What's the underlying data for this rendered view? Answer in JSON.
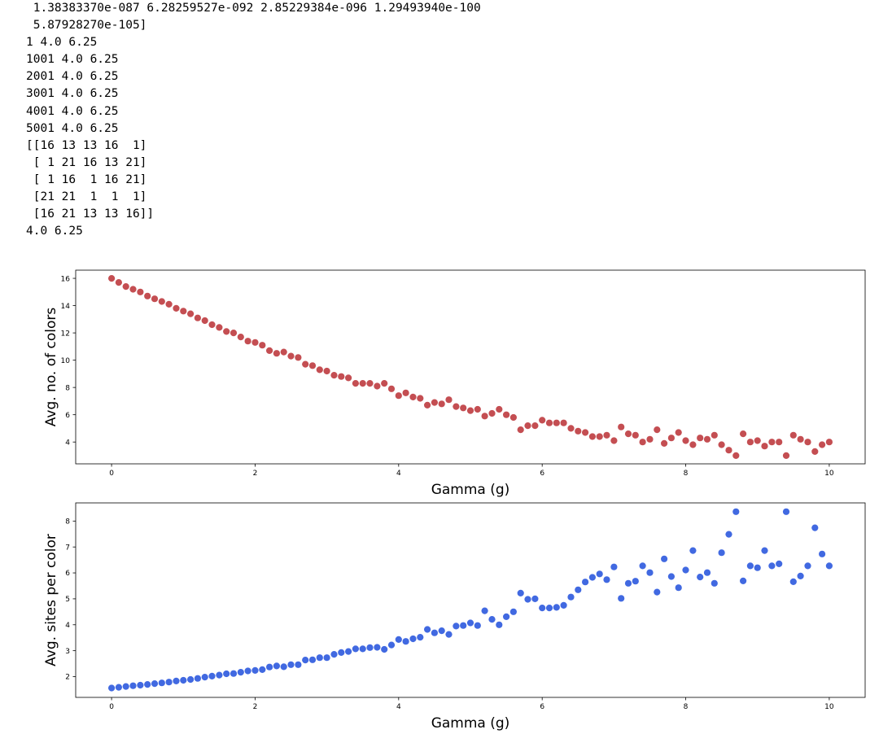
{
  "output": {
    "lines": [
      " 1.38383370e-087 6.28259527e-092 2.85229384e-096 1.29493940e-100",
      " 5.87928270e-105]",
      "1 4.0 6.25",
      "1001 4.0 6.25",
      "2001 4.0 6.25",
      "3001 4.0 6.25",
      "4001 4.0 6.25",
      "5001 4.0 6.25",
      "[[16 13 13 16  1]",
      " [ 1 21 16 13 21]",
      " [ 1 16  1 16 21]",
      " [21 21  1  1  1]",
      " [16 21 13 13 16]]",
      "4.0 6.25"
    ]
  },
  "chart_data": [
    {
      "type": "scatter",
      "color": "#c44e52",
      "xlabel": "Gamma (g)",
      "ylabel": "Avg. no. of colors",
      "xlim": [
        -0.5,
        10.5
      ],
      "ylim": [
        2.4,
        16.6
      ],
      "xticks": [
        0,
        2,
        4,
        6,
        8,
        10
      ],
      "yticks": [
        4,
        6,
        8,
        10,
        12,
        14,
        16
      ],
      "grid": false,
      "x": [
        0.0,
        0.1,
        0.2,
        0.3,
        0.4,
        0.5,
        0.6,
        0.7,
        0.8,
        0.9,
        1.0,
        1.1,
        1.2,
        1.3,
        1.4,
        1.5,
        1.6,
        1.7,
        1.8,
        1.9,
        2.0,
        2.1,
        2.2,
        2.3,
        2.4,
        2.5,
        2.6,
        2.7,
        2.8,
        2.9,
        3.0,
        3.1,
        3.2,
        3.3,
        3.4,
        3.5,
        3.6,
        3.7,
        3.8,
        3.9,
        4.0,
        4.1,
        4.2,
        4.3,
        4.4,
        4.5,
        4.6,
        4.7,
        4.8,
        4.9,
        5.0,
        5.1,
        5.2,
        5.3,
        5.4,
        5.5,
        5.6,
        5.7,
        5.8,
        5.9,
        6.0,
        6.1,
        6.2,
        6.3,
        6.4,
        6.5,
        6.6,
        6.7,
        6.8,
        6.9,
        7.0,
        7.1,
        7.2,
        7.3,
        7.4,
        7.5,
        7.6,
        7.7,
        7.8,
        7.9,
        8.0,
        8.1,
        8.2,
        8.3,
        8.4,
        8.5,
        8.6,
        8.7,
        8.8,
        8.9,
        9.0,
        9.1,
        9.2,
        9.3,
        9.4,
        9.5,
        9.6,
        9.7,
        9.8,
        9.9,
        10.0
      ],
      "y": [
        16.0,
        15.7,
        15.4,
        15.2,
        15.0,
        14.7,
        14.5,
        14.3,
        14.1,
        13.8,
        13.6,
        13.4,
        13.1,
        12.9,
        12.6,
        12.4,
        12.1,
        12.0,
        11.7,
        11.4,
        11.3,
        11.1,
        10.7,
        10.5,
        10.6,
        10.3,
        10.2,
        9.7,
        9.6,
        9.3,
        9.2,
        8.9,
        8.8,
        8.7,
        8.3,
        8.3,
        8.3,
        8.1,
        8.3,
        7.9,
        7.4,
        7.6,
        7.3,
        7.2,
        6.7,
        6.9,
        6.8,
        7.1,
        6.6,
        6.5,
        6.3,
        6.4,
        5.9,
        6.1,
        6.4,
        6.0,
        5.8,
        4.9,
        5.2,
        5.2,
        5.6,
        5.4,
        5.4,
        5.4,
        5.0,
        4.8,
        4.7,
        4.4,
        4.4,
        4.5,
        4.1,
        5.1,
        4.6,
        4.5,
        4.0,
        4.2,
        4.9,
        3.9,
        4.3,
        4.7,
        4.1,
        3.8,
        4.3,
        4.2,
        4.5,
        3.8,
        3.4,
        3.0,
        4.6,
        4.0,
        4.1,
        3.7,
        4.0,
        4.0,
        3.0,
        4.5,
        4.2,
        4.0,
        3.3,
        3.8,
        4.0
      ]
    },
    {
      "type": "scatter",
      "color": "#4169e1",
      "xlabel": "Gamma (g)",
      "ylabel": "Avg. sites per color",
      "xlim": [
        -0.5,
        10.5
      ],
      "ylim": [
        1.2,
        8.7
      ],
      "xticks": [
        0,
        2,
        4,
        6,
        8,
        10
      ],
      "yticks": [
        2,
        3,
        4,
        5,
        6,
        7,
        8
      ],
      "grid": false,
      "x": [
        0.0,
        0.1,
        0.2,
        0.3,
        0.4,
        0.5,
        0.6,
        0.7,
        0.8,
        0.9,
        1.0,
        1.1,
        1.2,
        1.3,
        1.4,
        1.5,
        1.6,
        1.7,
        1.8,
        1.9,
        2.0,
        2.1,
        2.2,
        2.3,
        2.4,
        2.5,
        2.6,
        2.7,
        2.8,
        2.9,
        3.0,
        3.1,
        3.2,
        3.3,
        3.4,
        3.5,
        3.6,
        3.7,
        3.8,
        3.9,
        4.0,
        4.1,
        4.2,
        4.3,
        4.4,
        4.5,
        4.6,
        4.7,
        4.8,
        4.9,
        5.0,
        5.1,
        5.2,
        5.3,
        5.4,
        5.5,
        5.6,
        5.7,
        5.8,
        5.9,
        6.0,
        6.1,
        6.2,
        6.3,
        6.4,
        6.5,
        6.6,
        6.7,
        6.8,
        6.9,
        7.0,
        7.1,
        7.2,
        7.3,
        7.4,
        7.5,
        7.6,
        7.7,
        7.8,
        7.9,
        8.0,
        8.1,
        8.2,
        8.3,
        8.4,
        8.5,
        8.6,
        8.7,
        8.8,
        8.9,
        9.0,
        9.1,
        9.2,
        9.3,
        9.4,
        9.5,
        9.6,
        9.7,
        9.8,
        9.9,
        10.0
      ],
      "y": [
        1.56,
        1.59,
        1.62,
        1.65,
        1.67,
        1.7,
        1.73,
        1.76,
        1.79,
        1.83,
        1.86,
        1.89,
        1.93,
        1.98,
        2.02,
        2.06,
        2.11,
        2.12,
        2.17,
        2.22,
        2.24,
        2.27,
        2.37,
        2.41,
        2.38,
        2.46,
        2.46,
        2.64,
        2.65,
        2.73,
        2.73,
        2.86,
        2.93,
        2.97,
        3.07,
        3.07,
        3.12,
        3.13,
        3.05,
        3.22,
        3.43,
        3.36,
        3.46,
        3.52,
        3.82,
        3.69,
        3.77,
        3.63,
        3.95,
        3.97,
        4.07,
        3.97,
        4.54,
        4.21,
        4.0,
        4.31,
        4.5,
        5.22,
        4.98,
        5.0,
        4.65,
        4.65,
        4.67,
        4.75,
        5.07,
        5.35,
        5.65,
        5.83,
        5.96,
        5.74,
        6.23,
        5.02,
        5.6,
        5.68,
        6.27,
        6.01,
        5.26,
        6.54,
        5.86,
        5.43,
        6.11,
        6.86,
        5.84,
        6.01,
        5.6,
        6.78,
        7.49,
        8.36,
        5.69,
        6.27,
        6.2,
        6.86,
        6.27,
        6.35,
        8.36,
        5.66,
        5.88,
        6.27,
        7.74,
        6.73,
        6.27
      ]
    }
  ]
}
